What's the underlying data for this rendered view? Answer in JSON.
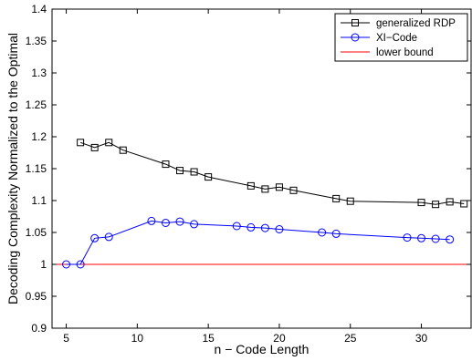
{
  "chart_data": {
    "type": "line",
    "xlabel": "n − Code Length",
    "ylabel": "Decoding Complexity Normalized to the Optimal",
    "xlim": [
      4,
      33.5
    ],
    "ylim": [
      0.9,
      1.4
    ],
    "x_ticks": [
      5,
      10,
      15,
      20,
      25,
      30
    ],
    "y_ticks": [
      0.9,
      0.95,
      1,
      1.05,
      1.1,
      1.15,
      1.2,
      1.25,
      1.3,
      1.35,
      1.4
    ],
    "x_tick_labels": [
      "5",
      "10",
      "15",
      "20",
      "25",
      "30"
    ],
    "y_tick_labels": [
      "0.9",
      "0.95",
      "1",
      "1.05",
      "1.1",
      "1.15",
      "1.2",
      "1.25",
      "1.3",
      "1.35",
      "1.4"
    ],
    "grid": false,
    "legend_position": "top-right",
    "series": [
      {
        "name": "generalized RDP",
        "color": "#000000",
        "marker": "square",
        "x": [
          6,
          7,
          8,
          9,
          12,
          13,
          14,
          15,
          18,
          19,
          20,
          21,
          24,
          25,
          30,
          31,
          32,
          33
        ],
        "y": [
          1.191,
          1.183,
          1.191,
          1.179,
          1.157,
          1.147,
          1.145,
          1.137,
          1.123,
          1.118,
          1.121,
          1.116,
          1.103,
          1.099,
          1.097,
          1.094,
          1.098,
          1.095
        ]
      },
      {
        "name": "XI−Code",
        "color": "#0000ff",
        "marker": "circle",
        "x": [
          5,
          6,
          7,
          8,
          11,
          12,
          13,
          14,
          17,
          18,
          19,
          20,
          23,
          24,
          29,
          30,
          31,
          32
        ],
        "y": [
          1.0,
          1.0,
          1.041,
          1.043,
          1.068,
          1.065,
          1.067,
          1.063,
          1.06,
          1.058,
          1.057,
          1.055,
          1.05,
          1.048,
          1.042,
          1.041,
          1.04,
          1.039
        ]
      }
    ],
    "reference_lines": [
      {
        "name": "lower bound",
        "y": 1.0,
        "color": "#ff0000"
      }
    ]
  }
}
